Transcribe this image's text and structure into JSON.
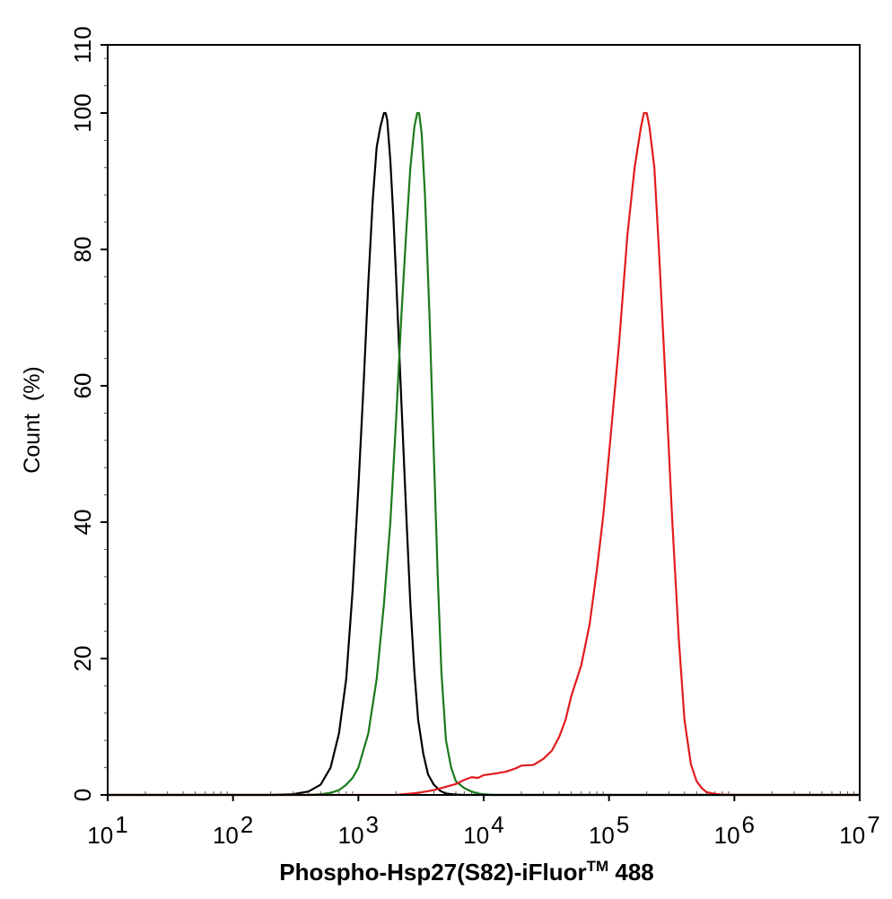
{
  "chart_data": {
    "type": "line",
    "title": "",
    "xlabel": "Phospho-Hsp27(S82)-iFluor",
    "xlabel_superscript": "TM",
    "xlabel_suffix": " 488",
    "ylabel": "Count  (%)",
    "x_scale": "log",
    "xlim": [
      10,
      10000000
    ],
    "ylim": [
      0,
      110
    ],
    "x_ticks": [
      {
        "base": "10",
        "exp": "1",
        "value": 10
      },
      {
        "base": "10",
        "exp": "2",
        "value": 100
      },
      {
        "base": "10",
        "exp": "3",
        "value": 1000
      },
      {
        "base": "10",
        "exp": "4",
        "value": 10000
      },
      {
        "base": "10",
        "exp": "5",
        "value": 100000
      },
      {
        "base": "10",
        "exp": "6",
        "value": 1000000
      },
      {
        "base": "10",
        "exp": "7",
        "value": 10000000
      }
    ],
    "y_ticks": [
      "0",
      "20",
      "40",
      "60",
      "80",
      "100",
      "110"
    ],
    "y_tick_values": [
      0,
      20,
      40,
      60,
      80,
      100,
      110
    ],
    "grid": false,
    "legend": "none",
    "series": [
      {
        "color": "#000000",
        "x": [
          10,
          200,
          300,
          400,
          500,
          600,
          700,
          800,
          900,
          1000,
          1100,
          1200,
          1300,
          1400,
          1500,
          1600,
          1650,
          1700,
          1800,
          1900,
          2000,
          2200,
          2400,
          2600,
          2800,
          3000,
          3300,
          3600,
          4000,
          4500,
          5000,
          6000,
          7000,
          8000,
          10000000
        ],
        "y": [
          0,
          0,
          0.1,
          0.5,
          1.5,
          4,
          9,
          17,
          30,
          45,
          60,
          75,
          87,
          95,
          98,
          100,
          100,
          99,
          93,
          85,
          76,
          58,
          42,
          28,
          18,
          11,
          6,
          3,
          1.5,
          0.6,
          0.2,
          0.05,
          0,
          0,
          0
        ]
      },
      {
        "color": "#1a7a1a",
        "x": [
          10,
          400,
          500,
          600,
          700,
          800,
          900,
          1000,
          1200,
          1400,
          1600,
          1800,
          2000,
          2200,
          2400,
          2600,
          2800,
          2950,
          3050,
          3200,
          3400,
          3700,
          4000,
          4300,
          4600,
          5000,
          5500,
          6000,
          7000,
          8000,
          9000,
          10000,
          12000,
          10000000
        ],
        "y": [
          0,
          0,
          0.1,
          0.3,
          0.7,
          1.5,
          2.5,
          4,
          9,
          17,
          28,
          40,
          55,
          70,
          82,
          92,
          98,
          100,
          100,
          97,
          88,
          70,
          50,
          32,
          18,
          8,
          4,
          2,
          1,
          0.5,
          0.2,
          0.1,
          0,
          0
        ]
      },
      {
        "color": "#e31a1c",
        "x": [
          10,
          2000,
          3000,
          4000,
          5000,
          6000,
          7000,
          8000,
          9000,
          10000,
          12000,
          15000,
          18000,
          20000,
          25000,
          30000,
          35000,
          40000,
          45000,
          50000,
          60000,
          70000,
          80000,
          90000,
          100000,
          120000,
          140000,
          160000,
          180000,
          190000,
          200000,
          210000,
          230000,
          250000,
          280000,
          320000,
          360000,
          400000,
          450000,
          500000,
          550000,
          600000,
          700000,
          800000,
          1000000,
          10000000
        ],
        "y": [
          0,
          0,
          0.3,
          0.7,
          1.2,
          1.6,
          2.2,
          2.6,
          2.5,
          2.9,
          3.1,
          3.4,
          3.9,
          4.3,
          4.4,
          5.3,
          6.5,
          8.5,
          11,
          14.5,
          19,
          25,
          33,
          41,
          50,
          66,
          82,
          92,
          98,
          100,
          100,
          98,
          92,
          80,
          62,
          40,
          23,
          11,
          4.5,
          2,
          1,
          0.4,
          0.15,
          0.05,
          0,
          0
        ]
      }
    ]
  }
}
